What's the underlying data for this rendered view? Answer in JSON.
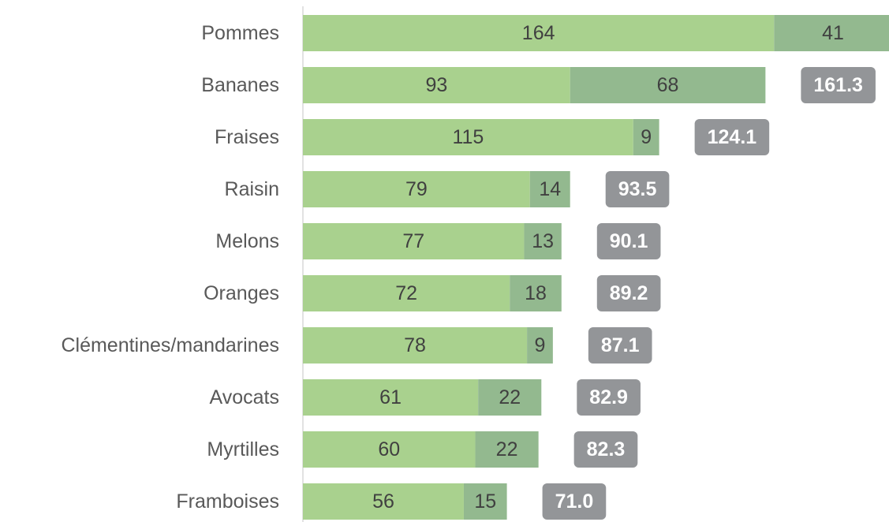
{
  "chart_data": {
    "type": "stacked-bar-horizontal",
    "categories": [
      "Pommes",
      "Bananes",
      "Fraises",
      "Raisin",
      "Melons",
      "Oranges",
      "Clémentines/mandarines",
      "Avocats",
      "Myrtilles",
      "Framboises"
    ],
    "series": [
      {
        "color": "#a9d18e",
        "values": [
          164,
          93,
          115,
          79,
          77,
          72,
          78,
          61,
          60,
          56
        ]
      },
      {
        "color": "#93b98f",
        "values": [
          41,
          68,
          9,
          14,
          13,
          18,
          9,
          22,
          22,
          15
        ]
      }
    ],
    "totals": [
      null,
      161.3,
      124.1,
      93.5,
      90.1,
      89.2,
      87.1,
      82.9,
      82.3,
      71.0
    ],
    "total_labels": [
      null,
      "161.3",
      "124.1",
      "93.5",
      "90.1",
      "89.2",
      "87.1",
      "82.9",
      "82.3",
      "71.0"
    ],
    "total_color": "#939598",
    "xlim": [
      0,
      204
    ]
  }
}
